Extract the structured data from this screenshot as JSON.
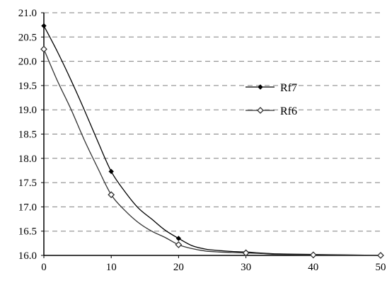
{
  "chart_data": {
    "type": "line",
    "title": "",
    "xlabel": "",
    "ylabel": "",
    "xlim": [
      0,
      50
    ],
    "ylim": [
      16.0,
      21.0
    ],
    "x_ticks": [
      0,
      10,
      20,
      30,
      40,
      50
    ],
    "x_tick_labels": [
      "0",
      "10",
      "20",
      "30",
      "40",
      "50"
    ],
    "y_ticks": [
      16.0,
      16.5,
      17.0,
      17.5,
      18.0,
      18.5,
      19.0,
      19.5,
      20.0,
      20.5,
      21.0
    ],
    "y_tick_labels": [
      "16.0",
      "16.5",
      "17.0",
      "17.5",
      "18.0",
      "18.5",
      "19.0",
      "19.5",
      "20.0",
      "20.5",
      "21.0"
    ],
    "grid": "horizontal dashed",
    "legend_position": "center-right",
    "series": [
      {
        "name": "Rf7",
        "marker": "filled-diamond",
        "color": "#000000",
        "markers": [
          [
            0,
            20.73
          ],
          [
            10,
            17.73
          ],
          [
            20,
            16.35
          ],
          [
            30,
            16.07
          ],
          [
            40,
            16.02
          ],
          [
            50,
            16.0
          ]
        ],
        "curve": [
          [
            0,
            20.73
          ],
          [
            2,
            20.2
          ],
          [
            4,
            19.62
          ],
          [
            6,
            19.0
          ],
          [
            8,
            18.35
          ],
          [
            10,
            17.73
          ],
          [
            12,
            17.32
          ],
          [
            14,
            16.98
          ],
          [
            16,
            16.75
          ],
          [
            18,
            16.52
          ],
          [
            20,
            16.35
          ],
          [
            22,
            16.2
          ],
          [
            24,
            16.13
          ],
          [
            26,
            16.1
          ],
          [
            28,
            16.08
          ],
          [
            30,
            16.07
          ],
          [
            32,
            16.05
          ],
          [
            35,
            16.03
          ],
          [
            40,
            16.02
          ],
          [
            45,
            16.01
          ],
          [
            50,
            16.0
          ]
        ]
      },
      {
        "name": "Rf6",
        "marker": "open-diamond",
        "color": "#333333",
        "markers": [
          [
            0,
            20.25
          ],
          [
            10,
            17.25
          ],
          [
            20,
            16.22
          ],
          [
            30,
            16.05
          ],
          [
            40,
            16.01
          ],
          [
            50,
            16.0
          ]
        ],
        "curve": [
          [
            0,
            20.25
          ],
          [
            2,
            19.6
          ],
          [
            4,
            19.02
          ],
          [
            6,
            18.38
          ],
          [
            8,
            17.8
          ],
          [
            10,
            17.25
          ],
          [
            12,
            16.93
          ],
          [
            14,
            16.68
          ],
          [
            16,
            16.5
          ],
          [
            18,
            16.37
          ],
          [
            20,
            16.22
          ],
          [
            22,
            16.14
          ],
          [
            24,
            16.09
          ],
          [
            26,
            16.07
          ],
          [
            28,
            16.06
          ],
          [
            30,
            16.05
          ],
          [
            32,
            16.04
          ],
          [
            35,
            16.02
          ],
          [
            40,
            16.01
          ],
          [
            45,
            16.005
          ],
          [
            50,
            16.0
          ]
        ]
      }
    ]
  }
}
